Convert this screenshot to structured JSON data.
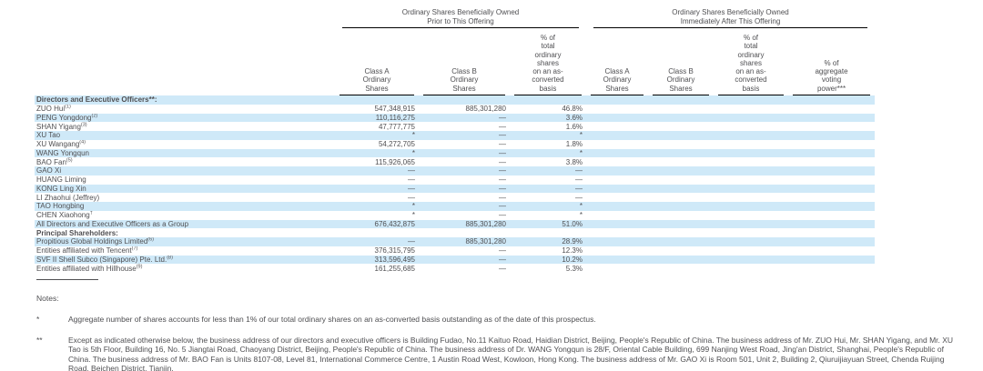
{
  "colors": {
    "stripe": "#cfe9f8",
    "text": "#4f4f52",
    "rule": "#000000"
  },
  "table": {
    "group_headers": [
      "Ordinary Shares Beneficially Owned\nPrior to This Offering",
      "Ordinary Shares Beneficially Owned\nImmediately After This Offering"
    ],
    "column_headers": [
      "Class A\nOrdinary\nShares",
      "Class B\nOrdinary\nShares",
      "% of\ntotal\nordinary\nshares\non an as-\nconverted\nbasis",
      "Class A\nOrdinary\nShares",
      "Class B\nOrdinary\nShares",
      "% of\ntotal\nordinary\nshares\non an as-\nconverted\nbasis",
      "% of\naggregate\nvoting\npower***"
    ],
    "rows": [
      {
        "label": "Directors and Executive Officers**:",
        "sup": "",
        "bold": true,
        "cells": [
          "",
          "",
          "",
          "",
          "",
          "",
          ""
        ]
      },
      {
        "label": "ZUO Hui",
        "sup": "(1)",
        "bold": false,
        "cells": [
          "547,348,915",
          "885,301,280",
          "46.8%",
          "",
          "",
          "",
          ""
        ]
      },
      {
        "label": "PENG Yongdong",
        "sup": "(2)",
        "bold": false,
        "cells": [
          "110,116,275",
          "—",
          "3.6%",
          "",
          "",
          "",
          ""
        ]
      },
      {
        "label": "SHAN Yigang",
        "sup": "(3)",
        "bold": false,
        "cells": [
          "47,777,775",
          "—",
          "1.6%",
          "",
          "",
          "",
          ""
        ]
      },
      {
        "label": "XU Tao",
        "sup": "",
        "bold": false,
        "cells": [
          "*",
          "—",
          "*",
          "",
          "",
          "",
          ""
        ]
      },
      {
        "label": "XU Wangang",
        "sup": "(4)",
        "bold": false,
        "cells": [
          "54,272,705",
          "—",
          "1.8%",
          "",
          "",
          "",
          ""
        ]
      },
      {
        "label": "WANG Yongqun",
        "sup": "",
        "bold": false,
        "cells": [
          "*",
          "—",
          "*",
          "",
          "",
          "",
          ""
        ]
      },
      {
        "label": "BAO Fan",
        "sup": "(5)",
        "bold": false,
        "cells": [
          "115,926,065",
          "—",
          "3.8%",
          "",
          "",
          "",
          ""
        ]
      },
      {
        "label": "GAO Xi",
        "sup": "",
        "bold": false,
        "cells": [
          "—",
          "—",
          "—",
          "",
          "",
          "",
          ""
        ]
      },
      {
        "label": "HUANG Liming",
        "sup": "",
        "bold": false,
        "cells": [
          "—",
          "—",
          "—",
          "",
          "",
          "",
          ""
        ]
      },
      {
        "label": "KONG Ling Xin",
        "sup": "",
        "bold": false,
        "cells": [
          "—",
          "—",
          "—",
          "",
          "",
          "",
          ""
        ]
      },
      {
        "label": "LI Zhaohui (Jeffrey)",
        "sup": "",
        "bold": false,
        "cells": [
          "—",
          "—",
          "—",
          "",
          "",
          "",
          ""
        ]
      },
      {
        "label": "TAO Hongbing",
        "sup": "",
        "bold": false,
        "cells": [
          "*",
          "—",
          "*",
          "",
          "",
          "",
          ""
        ]
      },
      {
        "label": "CHEN Xiaohong",
        "sup": "†",
        "bold": false,
        "cells": [
          "*",
          "—",
          "*",
          "",
          "",
          "",
          ""
        ]
      },
      {
        "label": "All Directors and Executive Officers as a Group",
        "sup": "",
        "bold": false,
        "cells": [
          "676,432,875",
          "885,301,280",
          "51.0%",
          "",
          "",
          "",
          ""
        ]
      },
      {
        "label": "Principal Shareholders:",
        "sup": "",
        "bold": true,
        "cells": [
          "",
          "",
          "",
          "",
          "",
          "",
          ""
        ]
      },
      {
        "label": "Propitious Global Holdings Limited",
        "sup": "(6)",
        "bold": false,
        "cells": [
          "—",
          "885,301,280",
          "28.9%",
          "",
          "",
          "",
          ""
        ]
      },
      {
        "label": "Entities affiliated with Tencent",
        "sup": "(7)",
        "bold": false,
        "cells": [
          "376,315,795",
          "—",
          "12.3%",
          "",
          "",
          "",
          ""
        ]
      },
      {
        "label": "SVF II Shell Subco (Singapore) Pte. Ltd.",
        "sup": "(8)",
        "bold": false,
        "cells": [
          "313,596,495",
          "—",
          "10.2%",
          "",
          "",
          "",
          ""
        ]
      },
      {
        "label": "Entities affiliated with Hillhouse",
        "sup": "(9)",
        "bold": false,
        "cells": [
          "161,255,685",
          "—",
          "5.3%",
          "",
          "",
          "",
          ""
        ]
      }
    ]
  },
  "notes": {
    "label": "Notes:",
    "items": [
      {
        "marker": "*",
        "text": "Aggregate number of shares accounts for less than 1% of our total ordinary shares on an as-converted basis outstanding as of the date of this prospectus."
      },
      {
        "marker": "**",
        "text": "Except as indicated otherwise below, the business address of our directors and executive officers is Building Fudao, No.11 Kaituo Road, Haidian District, Beijing, People's Republic of China. The business address of Mr. ZUO Hui, Mr. SHAN Yigang, and Mr. XU Tao is 5th Floor, Building 16, No. 5 Jiangtai Road, Chaoyang District, Beijing, People's Republic of China. The business address of Dr. WANG Yongqun is 28/F, Oriental Cable Building, 699 Nanjing West Road, Jing'an District, Shanghai, People's Republic of China. The business address of Mr. BAO Fan is Units 8107-08, Level 81, International Commerce Centre, 1 Austin Road West, Kowloon, Hong Kong. The business address of Mr. GAO Xi is Room 501, Unit 2, Building 2, Qiuruijiayuan Street, Chenda Ruijing Road, Beichen District, Tianjin,"
      }
    ]
  }
}
